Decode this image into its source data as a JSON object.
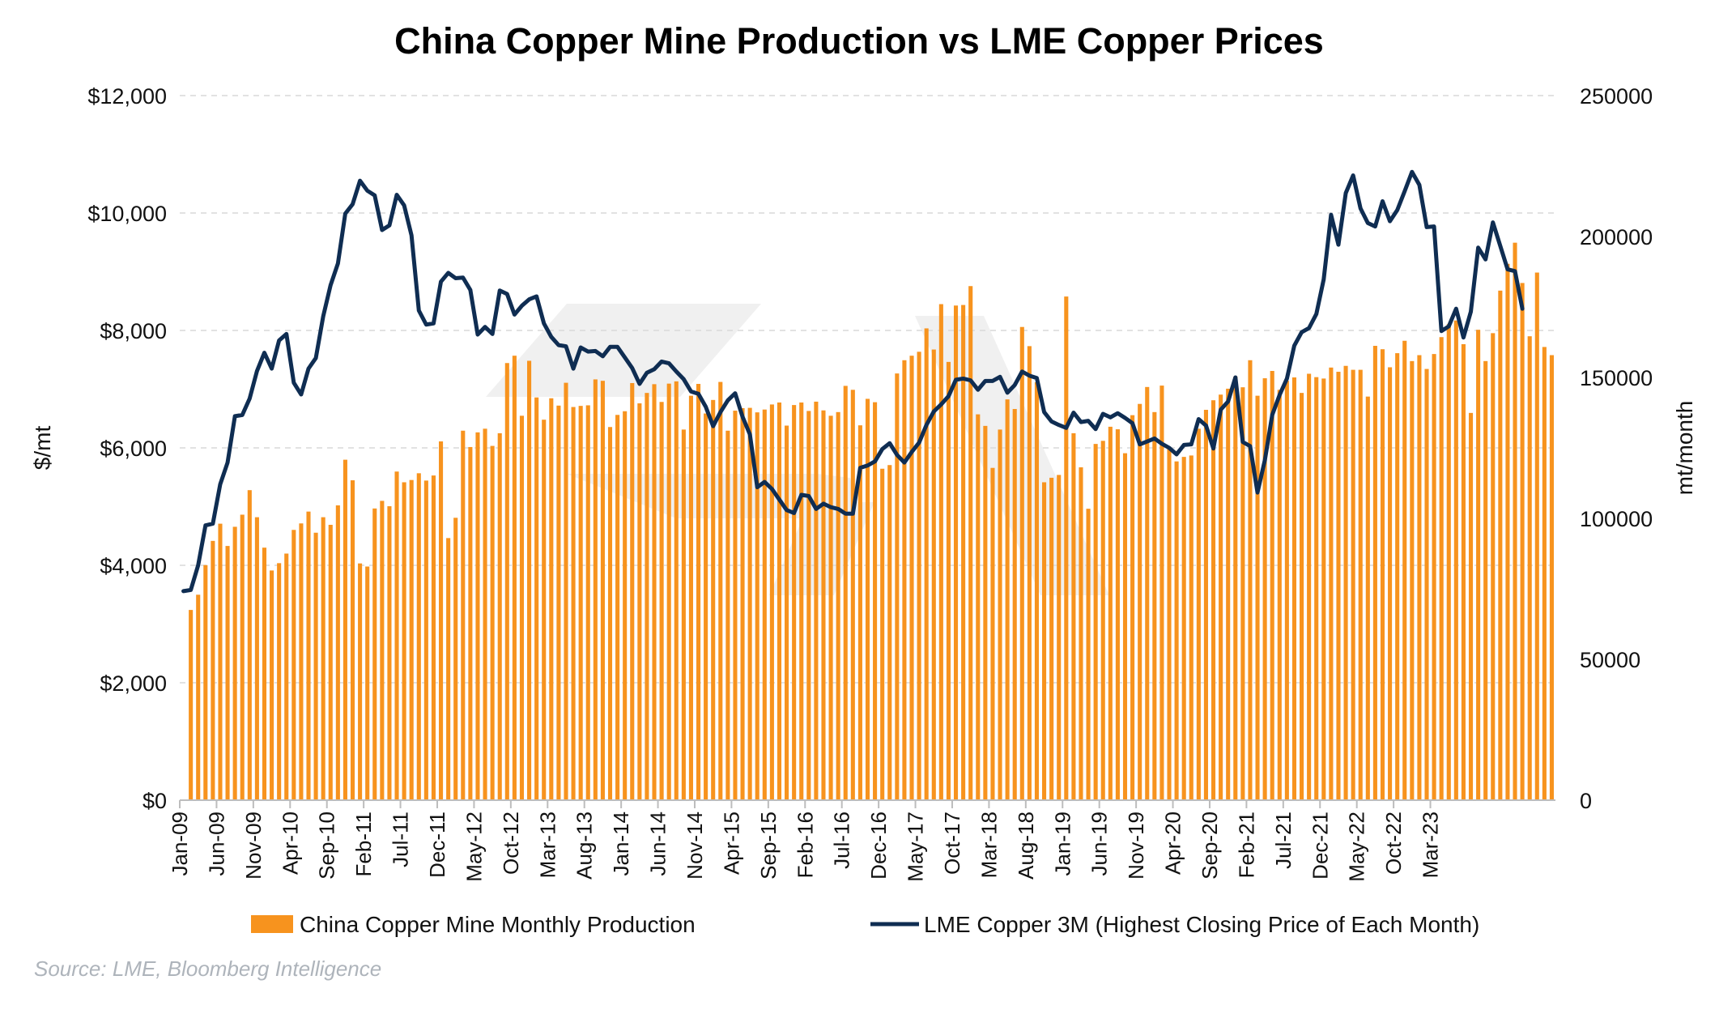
{
  "chart_data": {
    "type": "bar+line",
    "title": "China Copper Mine Production vs LME Copper Prices",
    "source": "Source: LME, Bloomberg Intelligence",
    "y_left": {
      "label": "$/mt",
      "lim": [
        0,
        12000
      ],
      "ticks": [
        0,
        2000,
        4000,
        6000,
        8000,
        10000,
        12000
      ],
      "tick_labels": [
        "$0",
        "$2,000",
        "$4,000",
        "$6,000",
        "$8,000",
        "$10,000",
        "$12,000"
      ]
    },
    "y_right": {
      "label": "mt/month",
      "lim": [
        0,
        250000
      ],
      "ticks": [
        0,
        50000,
        100000,
        150000,
        200000,
        250000
      ],
      "tick_labels": [
        "0",
        "50000",
        "100000",
        "150000",
        "200000",
        "250000"
      ]
    },
    "x_tick_labels": [
      "Jan-09",
      "Jun-09",
      "Nov-09",
      "Apr-10",
      "Sep-10",
      "Feb-11",
      "Jul-11",
      "Dec-11",
      "May-12",
      "Oct-12",
      "Mar-13",
      "Aug-13",
      "Jan-14",
      "Jun-14",
      "Nov-14",
      "Apr-15",
      "Sep-15",
      "Feb-16",
      "Jul-16",
      "Dec-16",
      "May-17",
      "Oct-17",
      "Mar-18",
      "Aug-18",
      "Jan-19",
      "Jun-19",
      "Nov-19",
      "Apr-20",
      "Sep-20",
      "Feb-21",
      "Jul-21",
      "Dec-21",
      "May-22",
      "Oct-22",
      "Mar-23"
    ],
    "x_start": "Jan-09",
    "grid": true,
    "legend_position": "bottom",
    "colors": {
      "bars": "#f7931e",
      "line": "#0f2d52",
      "grid": "#d9d9d9"
    },
    "series": [
      {
        "name": "China Copper Mine Monthly Production",
        "type": "bar",
        "axis": "right",
        "values": [
          null,
          67500,
          72900,
          83400,
          92000,
          98100,
          90200,
          97000,
          101300,
          110000,
          100400,
          89600,
          81500,
          84100,
          87500,
          95900,
          98200,
          102400,
          94900,
          100400,
          97700,
          104600,
          120800,
          113500,
          84000,
          82900,
          103500,
          106200,
          104300,
          116600,
          112800,
          113600,
          116000,
          113400,
          115200,
          127300,
          93000,
          100200,
          131100,
          125300,
          130500,
          131800,
          125700,
          130200,
          155100,
          157700,
          136400,
          155900,
          142900,
          135000,
          142600,
          140000,
          148100,
          139500,
          139900,
          140100,
          149300,
          148800,
          132400,
          136700,
          138000,
          148000,
          140800,
          144500,
          147600,
          141300,
          147800,
          148600,
          131500,
          143500,
          147700,
          137200,
          142000,
          148400,
          131100,
          138200,
          139100,
          139200,
          137600,
          138600,
          140400,
          141100,
          132900,
          140200,
          141100,
          138100,
          141400,
          138300,
          136400,
          137700,
          147000,
          145600,
          133000,
          142400,
          141200,
          117600,
          118900,
          151400,
          156100,
          157700,
          159100,
          167400,
          159900,
          176000,
          155500,
          175500,
          175700,
          182400,
          136900,
          132800,
          117900,
          131500,
          142200,
          138800,
          167900,
          161100,
          148300,
          112800,
          114400,
          115400,
          178700,
          130200,
          118100,
          103400,
          126400,
          127500,
          132500,
          131600,
          123100,
          136600,
          140600,
          146600,
          137700,
          147100,
          124700,
          120200,
          121800,
          122300,
          131800,
          138500,
          141900,
          143900,
          146000,
          150300,
          146500,
          156100,
          143500,
          149700,
          152300,
          145600,
          148800,
          150000,
          144500,
          151300,
          150100,
          149600,
          153500,
          152000,
          154100,
          152700,
          152700,
          143200,
          161200,
          160000,
          153600,
          158600,
          163000,
          155800,
          157900,
          153000,
          158300,
          164300,
          168900,
          170200,
          161800,
          137400,
          166900,
          155800,
          165700,
          180800,
          190300,
          197800,
          183500,
          164600,
          187200,
          160800,
          157900
        ]
      },
      {
        "name": "LME Copper 3M (Highest Closing Price of Each Month)",
        "type": "line",
        "axis": "left",
        "values": [
          3560,
          3580,
          4000,
          4680,
          4710,
          5380,
          5750,
          6540,
          6560,
          6840,
          7310,
          7620,
          7350,
          7830,
          7940,
          7110,
          6910,
          7350,
          7530,
          8240,
          8770,
          9140,
          9990,
          10150,
          10550,
          10380,
          10300,
          9710,
          9790,
          10310,
          10130,
          9620,
          8340,
          8100,
          8120,
          8830,
          8980,
          8890,
          8900,
          8690,
          7930,
          8060,
          7940,
          8680,
          8620,
          8270,
          8420,
          8530,
          8580,
          8120,
          7890,
          7750,
          7730,
          7350,
          7710,
          7640,
          7650,
          7560,
          7720,
          7720,
          7540,
          7360,
          7090,
          7280,
          7340,
          7470,
          7440,
          7300,
          7170,
          6960,
          6920,
          6700,
          6370,
          6610,
          6810,
          6930,
          6530,
          6230,
          5330,
          5420,
          5300,
          5120,
          4940,
          4890,
          5200,
          5180,
          4960,
          5050,
          4990,
          4960,
          4880,
          4880,
          5660,
          5700,
          5770,
          5980,
          6080,
          5880,
          5750,
          5930,
          6090,
          6390,
          6620,
          6740,
          6880,
          7160,
          7180,
          7150,
          6990,
          7140,
          7140,
          7210,
          6940,
          7070,
          7300,
          7230,
          7190,
          6610,
          6450,
          6390,
          6340,
          6600,
          6440,
          6460,
          6320,
          6580,
          6520,
          6590,
          6510,
          6420,
          6060,
          6110,
          6160,
          6070,
          6000,
          5890,
          6050,
          6060,
          6490,
          6380,
          5990,
          6650,
          6790,
          7200,
          6100,
          6030,
          5240,
          5790,
          6560,
          6900,
          7180,
          7740,
          7970,
          8040,
          8280,
          8870,
          9970,
          9460,
          10340,
          10640,
          10080,
          9830,
          9770,
          10200,
          9860,
          10050,
          10370,
          10700,
          10480,
          9760,
          9770,
          7990,
          8070,
          8370,
          7880,
          8320,
          9410,
          9210,
          9840,
          9440,
          9040,
          9010,
          8370
        ]
      }
    ]
  }
}
